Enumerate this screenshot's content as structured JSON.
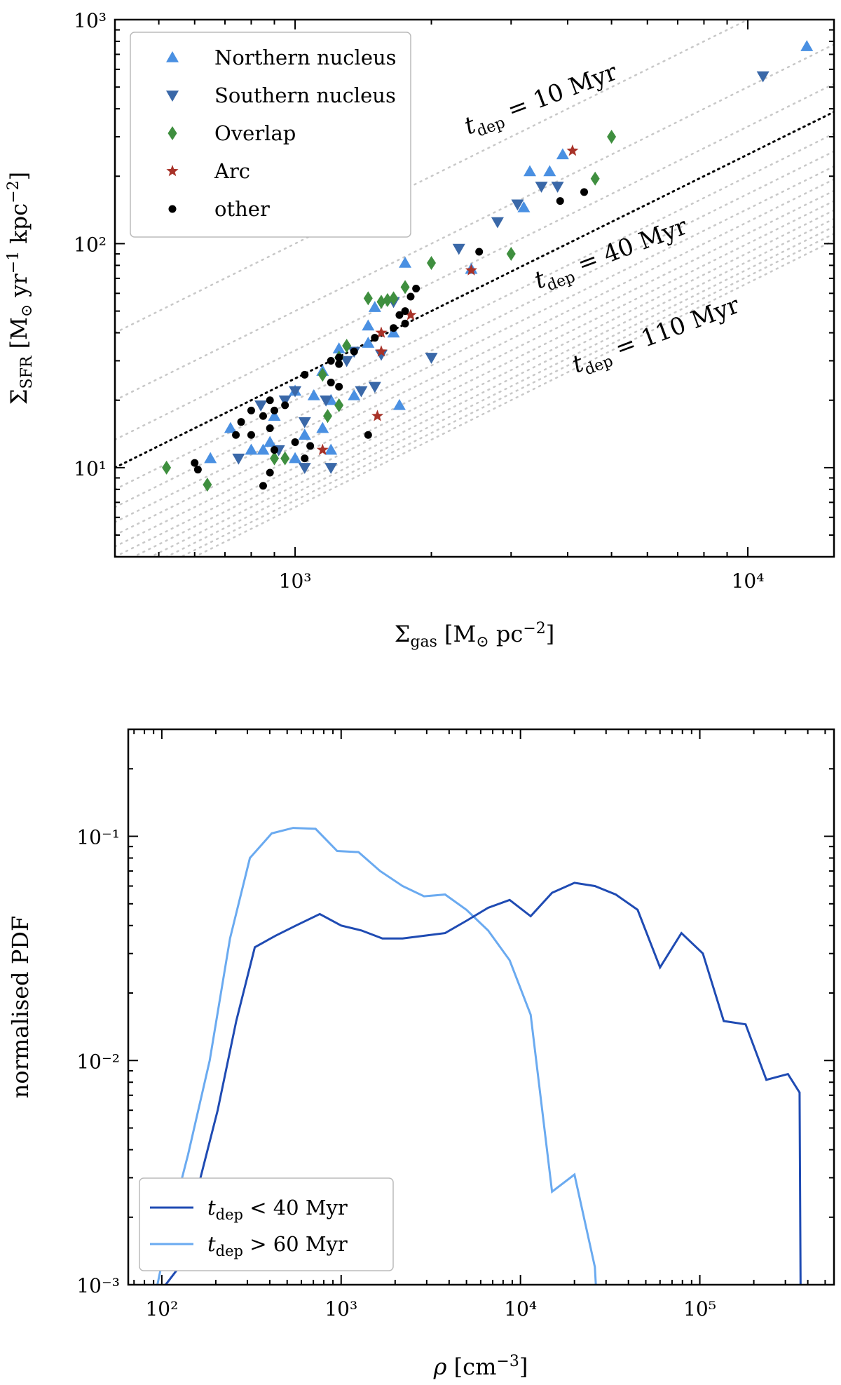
{
  "colors": {
    "northern": "#4a90e2",
    "southern": "#3a68a8",
    "overlap": "#3f8f3f",
    "arc": "#a83228",
    "other": "#000000",
    "short_dep": "#1f4bb3",
    "long_dep": "#6aaaf0",
    "guide": "#c8c8c8"
  },
  "chart_data": [
    {
      "type": "scatter",
      "xlabel": "Σgas [M⊙ pc−2]",
      "ylabel": "ΣSFR [M⊙ yr−1 kpc−2]",
      "xscale": "log",
      "yscale": "log",
      "xlim": [
        400,
        15500
      ],
      "ylim": [
        4,
        1000
      ],
      "xticks": [
        {
          "value": 1000,
          "label": "10³"
        },
        {
          "value": 10000,
          "label": "10⁴"
        }
      ],
      "yticks": [
        {
          "value": 10,
          "label": "10¹"
        },
        {
          "value": 100,
          "label": "10²"
        },
        {
          "value": 1000,
          "label": "10³"
        }
      ],
      "tdep_lines_myr": [
        10,
        20,
        30,
        40,
        50,
        60,
        70,
        80,
        90,
        100,
        110,
        120,
        130,
        140,
        150
      ],
      "highlighted_tdep_myr": [
        10,
        40,
        110
      ],
      "annotations": [
        "t_dep = 10 Myr",
        "t_dep = 40 Myr",
        "t_dep = 110 Myr"
      ],
      "legend": {
        "position": "upper-left",
        "entries": [
          "Northern nucleus",
          "Southern nucleus",
          "Overlap",
          "Arc",
          "other"
        ]
      },
      "series": [
        {
          "name": "Northern nucleus",
          "marker": "triangle-up",
          "points": [
            [
              13500,
              760
            ],
            [
              3900,
              250
            ],
            [
              3300,
              210
            ],
            [
              3650,
              210
            ],
            [
              3200,
              145
            ],
            [
              2450,
              77
            ],
            [
              1750,
              82
            ],
            [
              1500,
              52
            ],
            [
              1450,
              43
            ],
            [
              1650,
              40
            ],
            [
              1250,
              34
            ],
            [
              1450,
              36
            ],
            [
              1150,
              27
            ],
            [
              1000,
              22
            ],
            [
              1100,
              21
            ],
            [
              1200,
              20
            ],
            [
              1350,
              21
            ],
            [
              1700,
              19
            ],
            [
              900,
              17
            ],
            [
              1150,
              15
            ],
            [
              1050,
              14
            ],
            [
              720,
              15
            ],
            [
              850,
              12
            ],
            [
              800,
              12
            ],
            [
              1000,
              11
            ],
            [
              1200,
              12
            ],
            [
              650,
              11
            ],
            [
              880,
              13
            ]
          ]
        },
        {
          "name": "Southern nucleus",
          "marker": "triangle-down",
          "points": [
            [
              10800,
              560
            ],
            [
              3800,
              180
            ],
            [
              3500,
              180
            ],
            [
              3100,
              150
            ],
            [
              2800,
              125
            ],
            [
              2300,
              95
            ],
            [
              1650,
              55
            ],
            [
              2000,
              31
            ],
            [
              1550,
              32
            ],
            [
              1300,
              30
            ],
            [
              1350,
              33
            ],
            [
              1000,
              22
            ],
            [
              1170,
              20
            ],
            [
              1400,
              22
            ],
            [
              950,
              20
            ],
            [
              1050,
              16
            ],
            [
              920,
              12
            ],
            [
              1050,
              10
            ],
            [
              1200,
              10
            ],
            [
              750,
              11
            ],
            [
              1500,
              23
            ],
            [
              840,
              19
            ]
          ]
        },
        {
          "name": "Overlap",
          "marker": "diamond",
          "points": [
            [
              5000,
              300
            ],
            [
              4600,
              195
            ],
            [
              3000,
              90
            ],
            [
              2000,
              82
            ],
            [
              1750,
              64
            ],
            [
              1650,
              57
            ],
            [
              1550,
              55
            ],
            [
              1600,
              56
            ],
            [
              1450,
              57
            ],
            [
              1300,
              35
            ],
            [
              1250,
              31
            ],
            [
              1150,
              26
            ],
            [
              1250,
              19
            ],
            [
              1180,
              17
            ],
            [
              950,
              11
            ],
            [
              900,
              11
            ],
            [
              520,
              10
            ],
            [
              640,
              8.4
            ]
          ]
        },
        {
          "name": "Arc",
          "marker": "star",
          "points": [
            [
              4100,
              260
            ],
            [
              2450,
              76
            ],
            [
              1800,
              48
            ],
            [
              1550,
              40
            ],
            [
              1550,
              33
            ],
            [
              1520,
              17
            ],
            [
              1150,
              12
            ]
          ]
        },
        {
          "name": "other",
          "marker": "circle",
          "points": [
            [
              4350,
              170
            ],
            [
              3850,
              155
            ],
            [
              2550,
              92
            ],
            [
              1850,
              63
            ],
            [
              1800,
              58
            ],
            [
              1750,
              50
            ],
            [
              1700,
              48
            ],
            [
              1750,
              44
            ],
            [
              1650,
              42
            ],
            [
              1500,
              38
            ],
            [
              1350,
              33
            ],
            [
              1250,
              31
            ],
            [
              1200,
              30
            ],
            [
              1250,
              29
            ],
            [
              1200,
              24
            ],
            [
              1250,
              23
            ],
            [
              1050,
              26
            ],
            [
              880,
              20
            ],
            [
              900,
              18
            ],
            [
              800,
              18
            ],
            [
              850,
              17
            ],
            [
              760,
              16
            ],
            [
              740,
              14
            ],
            [
              800,
              14
            ],
            [
              950,
              19
            ],
            [
              880,
              15
            ],
            [
              1000,
              13
            ],
            [
              900,
              12
            ],
            [
              1050,
              11
            ],
            [
              1080,
              12.5
            ],
            [
              1450,
              14
            ],
            [
              880,
              9.5
            ],
            [
              850,
              8.3
            ],
            [
              600,
              10.5
            ],
            [
              610,
              9.8
            ]
          ]
        }
      ]
    },
    {
      "type": "line",
      "xlabel": "ρ [cm−3]",
      "ylabel": "normalised PDF",
      "xscale": "log",
      "yscale": "log",
      "xlim": [
        65,
        560000
      ],
      "ylim": [
        0.001,
        0.3
      ],
      "xticks": [
        {
          "value": 100,
          "label": "10²"
        },
        {
          "value": 1000,
          "label": "10³"
        },
        {
          "value": 10000,
          "label": "10⁴"
        },
        {
          "value": 100000,
          "label": "10⁵"
        }
      ],
      "yticks": [
        {
          "value": 0.001,
          "label": "10⁻³"
        },
        {
          "value": 0.01,
          "label": "10⁻²"
        },
        {
          "value": 0.1,
          "label": "10⁻¹"
        }
      ],
      "legend": {
        "position": "lower-left",
        "entries": [
          "t_dep < 40 Myr",
          "t_dep > 60 Myr"
        ]
      },
      "series": [
        {
          "name": "t_dep < 40 Myr",
          "x": [
            95,
            125,
            155,
            205,
            260,
            330,
            430,
            560,
            760,
            1000,
            1300,
            1700,
            2200,
            2900,
            3800,
            5000,
            6600,
            8700,
            11400,
            15000,
            20000,
            26000,
            34000,
            45000,
            60000,
            79000,
            104000,
            136000,
            180000,
            235000,
            310000,
            360000,
            365000
          ],
          "y": [
            0.0009,
            0.0012,
            0.0025,
            0.006,
            0.015,
            0.032,
            0.036,
            0.04,
            0.045,
            0.04,
            0.038,
            0.035,
            0.035,
            0.036,
            0.037,
            0.042,
            0.048,
            0.052,
            0.044,
            0.056,
            0.062,
            0.06,
            0.055,
            0.047,
            0.026,
            0.037,
            0.03,
            0.015,
            0.0145,
            0.0082,
            0.0087,
            0.0072,
            0.0009
          ]
        },
        {
          "name": "t_dep > 60 Myr",
          "x": [
            92,
            110,
            140,
            185,
            240,
            310,
            410,
            540,
            720,
            950,
            1250,
            1650,
            2200,
            2900,
            3800,
            5000,
            6600,
            8700,
            11400,
            15000,
            20000,
            26000,
            26500
          ],
          "y": [
            0.0009,
            0.0018,
            0.0038,
            0.01,
            0.035,
            0.08,
            0.103,
            0.109,
            0.108,
            0.086,
            0.085,
            0.07,
            0.06,
            0.054,
            0.055,
            0.047,
            0.038,
            0.028,
            0.016,
            0.0026,
            0.0031,
            0.0012,
            0.0009
          ]
        }
      ]
    }
  ]
}
